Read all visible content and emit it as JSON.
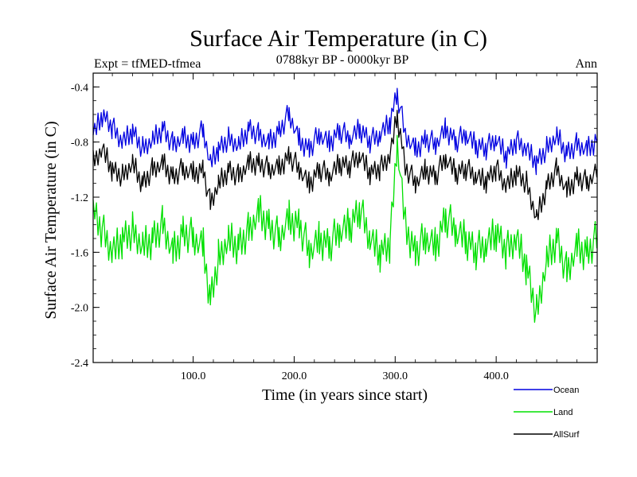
{
  "chart_data": {
    "type": "line",
    "title": "Surface Air Temperature (in C)",
    "subtitle_left": "Expt = tfMED-tfmea",
    "subtitle_center": "0788kyr BP - 0000kyr BP",
    "subtitle_right": "Ann",
    "xlabel": "Time (in years since start)",
    "ylabel": "Surface Air Temperature (in C)",
    "xlim": [
      1,
      500
    ],
    "ylim": [
      -2.4,
      -0.3
    ],
    "x_ticks": [
      100,
      200,
      300,
      400
    ],
    "x_tick_labels": [
      "100.0",
      "200.0",
      "300.0",
      "400.0"
    ],
    "y_ticks": [
      -0.4,
      -0.8,
      -1.2,
      -1.6,
      -2.0,
      -2.4
    ],
    "y_tick_labels": [
      "-0.4",
      "-0.8",
      "-1.2",
      "-1.6",
      "-2.0",
      "-2.4"
    ],
    "x": [
      1,
      10,
      20,
      30,
      40,
      50,
      60,
      70,
      80,
      90,
      100,
      110,
      117,
      125,
      135,
      145,
      155,
      165,
      175,
      185,
      195,
      205,
      215,
      225,
      235,
      245,
      255,
      265,
      275,
      285,
      295,
      302,
      310,
      320,
      330,
      340,
      350,
      360,
      370,
      380,
      390,
      400,
      410,
      420,
      430,
      440,
      450,
      460,
      470,
      480,
      490,
      500
    ],
    "series": [
      {
        "name": "Ocean",
        "color": "#0000e0",
        "values": [
          -0.75,
          -0.6,
          -0.7,
          -0.8,
          -0.72,
          -0.85,
          -0.78,
          -0.7,
          -0.82,
          -0.76,
          -0.8,
          -0.72,
          -0.95,
          -0.85,
          -0.78,
          -0.82,
          -0.7,
          -0.75,
          -0.8,
          -0.72,
          -0.6,
          -0.78,
          -0.85,
          -0.75,
          -0.8,
          -0.72,
          -0.78,
          -0.7,
          -0.8,
          -0.75,
          -0.65,
          -0.45,
          -0.75,
          -0.85,
          -0.78,
          -0.82,
          -0.7,
          -0.8,
          -0.75,
          -0.82,
          -0.85,
          -0.78,
          -0.9,
          -0.8,
          -0.85,
          -0.95,
          -0.85,
          -0.75,
          -0.88,
          -0.82,
          -0.85,
          -0.78
        ]
      },
      {
        "name": "Land",
        "color": "#00e000",
        "values": [
          -1.3,
          -1.45,
          -1.6,
          -1.5,
          -1.45,
          -1.55,
          -1.5,
          -1.4,
          -1.6,
          -1.45,
          -1.5,
          -1.55,
          -1.95,
          -1.65,
          -1.5,
          -1.55,
          -1.45,
          -1.3,
          -1.4,
          -1.5,
          -1.35,
          -1.4,
          -1.6,
          -1.5,
          -1.55,
          -1.45,
          -1.4,
          -1.3,
          -1.5,
          -1.6,
          -1.55,
          -0.8,
          -1.4,
          -1.6,
          -1.5,
          -1.55,
          -1.35,
          -1.45,
          -1.5,
          -1.6,
          -1.55,
          -1.45,
          -1.6,
          -1.5,
          -1.7,
          -2.05,
          -1.65,
          -1.5,
          -1.75,
          -1.55,
          -1.6,
          -1.5
        ]
      },
      {
        "name": "AllSurf",
        "color": "#000000",
        "values": [
          -0.95,
          -0.85,
          -1.0,
          -1.05,
          -0.95,
          -1.1,
          -1.0,
          -0.95,
          -1.05,
          -1.0,
          -1.02,
          -1.0,
          -1.25,
          -1.1,
          -1.0,
          -1.05,
          -0.95,
          -0.95,
          -1.0,
          -0.98,
          -0.9,
          -1.0,
          -1.1,
          -1.0,
          -1.05,
          -0.95,
          -0.98,
          -0.9,
          -1.02,
          -1.0,
          -0.9,
          -0.6,
          -0.98,
          -1.1,
          -1.0,
          -1.05,
          -0.92,
          -1.02,
          -1.0,
          -1.05,
          -1.08,
          -1.0,
          -1.12,
          -1.02,
          -1.1,
          -1.35,
          -1.12,
          -1.0,
          -1.15,
          -1.05,
          -1.1,
          -1.0
        ]
      }
    ],
    "legend": [
      "Ocean",
      "Land",
      "AllSurf"
    ],
    "legend_position": "bottom-right",
    "grid": false
  }
}
